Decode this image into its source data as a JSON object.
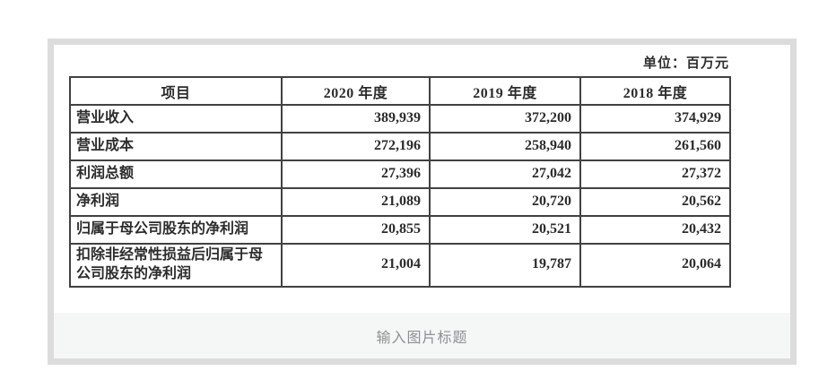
{
  "unit_label": "单位：百万元",
  "table": {
    "headers": [
      "项目",
      "2020 年度",
      "2019 年度",
      "2018 年度"
    ],
    "rows": [
      {
        "label": "营业收入",
        "values": [
          "389,939",
          "372,200",
          "374,929"
        ]
      },
      {
        "label": "营业成本",
        "values": [
          "272,196",
          "258,940",
          "261,560"
        ]
      },
      {
        "label": "利润总额",
        "values": [
          "27,396",
          "27,042",
          "27,372"
        ]
      },
      {
        "label": "净利润",
        "values": [
          "21,089",
          "20,720",
          "20,562"
        ]
      },
      {
        "label": "归属于母公司股东的净利润",
        "values": [
          "20,855",
          "20,521",
          "20,432"
        ]
      },
      {
        "label": "扣除非经常性损益后归属于母公司股东的净利润",
        "values": [
          "21,004",
          "19,787",
          "20,064"
        ]
      }
    ]
  },
  "caption": {
    "placeholder": "输入图片标题"
  },
  "colors": {
    "card_frame": "#dcdcdc",
    "caption_bg": "#f5f6f6",
    "caption_text": "#8e9192",
    "table_border": "#414141",
    "text": "#2c2c2c"
  }
}
